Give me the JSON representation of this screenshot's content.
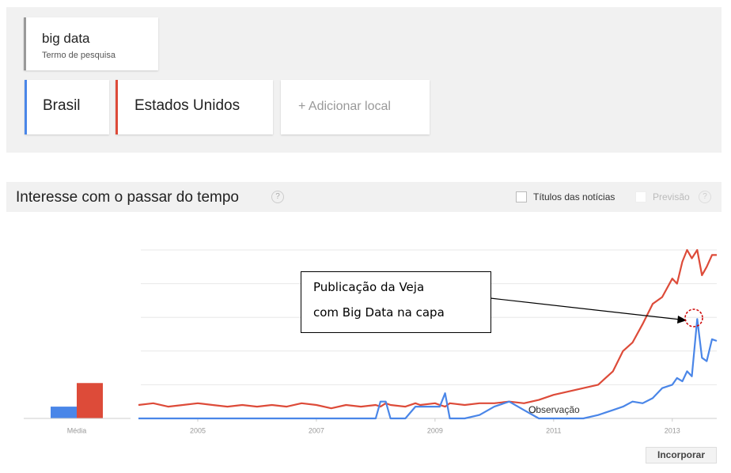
{
  "search": {
    "term": "big data",
    "term_label": "Termo de pesquisa"
  },
  "add_location": "+ Adicionar local",
  "section_title": "Interesse com o passar do tempo",
  "help_icon": "?",
  "news_headlines": "Títulos das notícias",
  "forecast": "Previsão",
  "embed_button": "Incorporar",
  "chart_data": [
    {
      "type": "bar",
      "categories": [
        "Média"
      ],
      "ylim": [
        0,
        100
      ],
      "series": [
        {
          "color": "#4a86e8",
          "values": [
            7
          ]
        },
        {
          "color": "#dd4b39",
          "values": [
            21
          ]
        }
      ]
    },
    {
      "type": "line",
      "x": [
        2004,
        2004.25,
        2004.5,
        2004.75,
        2005,
        2005.25,
        2005.5,
        2005.75,
        2006,
        2006.25,
        2006.5,
        2006.75,
        2007,
        2007.25,
        2007.5,
        2007.75,
        2008,
        2008.08,
        2008.17,
        2008.25,
        2008.5,
        2008.67,
        2008.75,
        2009,
        2009.08,
        2009.17,
        2009.25,
        2009.5,
        2009.75,
        2010,
        2010.25,
        2010.5,
        2010.75,
        2011,
        2011.25,
        2011.5,
        2011.75,
        2012,
        2012.17,
        2012.33,
        2012.5,
        2012.67,
        2012.83,
        2013,
        2013.08,
        2013.17,
        2013.25,
        2013.33,
        2013.42,
        2013.5,
        2013.58,
        2013.67,
        2013.75
      ],
      "xlim": [
        2004,
        2013.75
      ],
      "xticks": [
        2005,
        2007,
        2009,
        2011,
        2013
      ],
      "ylim": [
        0,
        100
      ],
      "yticks": [
        0,
        20,
        40,
        60,
        80,
        100
      ],
      "grid": true,
      "series": [
        {
          "name": "Brasil",
          "color": "#4a86e8",
          "values": [
            0,
            0,
            0,
            0,
            0,
            0,
            0,
            0,
            0,
            0,
            0,
            0,
            0,
            0,
            0,
            0,
            0,
            10,
            10,
            0,
            0,
            7,
            7,
            7,
            7,
            15,
            0,
            0,
            2,
            7,
            10,
            5,
            0,
            0,
            0,
            0,
            2,
            5,
            7,
            10,
            9,
            12,
            18,
            20,
            24,
            22,
            28,
            25,
            59,
            36,
            34,
            47,
            46
          ]
        },
        {
          "name": "Estados Unidos",
          "color": "#dd4b39",
          "values": [
            8,
            9,
            7,
            8,
            9,
            8,
            7,
            8,
            7,
            8,
            7,
            9,
            8,
            6,
            8,
            7,
            8,
            7,
            9,
            8,
            7,
            9,
            8,
            9,
            8,
            7,
            9,
            8,
            9,
            9,
            10,
            9,
            11,
            14,
            16,
            18,
            20,
            28,
            40,
            45,
            56,
            68,
            72,
            83,
            80,
            93,
            100,
            95,
            100,
            85,
            90,
            97,
            97
          ]
        }
      ],
      "annotation": [
        "Publicação da Veja",
        "com Big Data na capa"
      ],
      "marker_label": "Observação"
    }
  ]
}
